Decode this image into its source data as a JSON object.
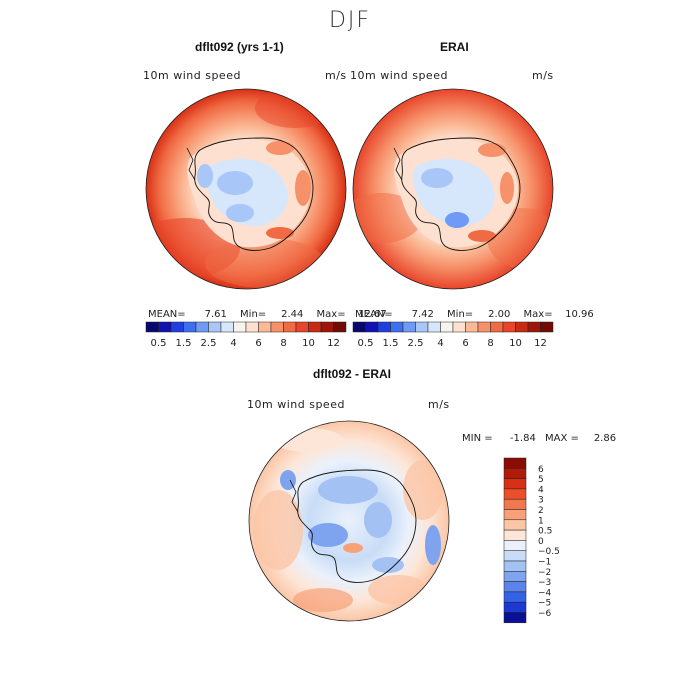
{
  "figure": {
    "title": "DJF"
  },
  "panels": [
    {
      "title": "dflt092 (yrs 1-1)",
      "left_label": "10m wind speed",
      "right_label": "m/s",
      "stats": {
        "mean": "7.61",
        "min": "2.44",
        "max": "12.67"
      },
      "stat_labels": {
        "mean": "MEAN=",
        "min": "Min=",
        "max": "Max="
      }
    },
    {
      "title": "ERAI",
      "left_label": "10m wind speed",
      "right_label": "m/s",
      "stats": {
        "mean": "7.42",
        "min": "2.00",
        "max": "10.96"
      },
      "stat_labels": {
        "mean": "MEAN=",
        "min": "Min=",
        "max": "Max="
      }
    },
    {
      "title": "dflt092 - ERAI",
      "left_label": "10m wind speed",
      "right_label": "m/s",
      "stats_text": {
        "min_label": "MIN =",
        "min": "-1.84",
        "max_label": "MAX =",
        "max": "2.86"
      }
    }
  ],
  "colorbar_horizontal": {
    "tick_labels": [
      "0.5",
      "1.5",
      "2.5",
      "4",
      "6",
      "8",
      "10",
      "12"
    ],
    "colors": [
      "#08086e",
      "#1212b0",
      "#1f3fe0",
      "#3d6ff0",
      "#6f9af5",
      "#a8c6f7",
      "#d6e6fb",
      "#f7f3ee",
      "#fde0cf",
      "#fbb996",
      "#f6916a",
      "#f06a43",
      "#e8452a",
      "#c82a14",
      "#9d1608",
      "#700a02"
    ]
  },
  "colorbar_vertical": {
    "tick_labels": [
      "6",
      "5",
      "4",
      "3",
      "2",
      "1",
      "0.5",
      "0",
      "−0.5",
      "−1",
      "−2",
      "−3",
      "−4",
      "−5",
      "−6"
    ],
    "colors": [
      "#8a0d02",
      "#b01c08",
      "#d83014",
      "#ea4f2a",
      "#f2764e",
      "#f7a178",
      "#fbc6a6",
      "#fde6d8",
      "#eaf1fb",
      "#c8dcf7",
      "#a3c1f3",
      "#7ea4ef",
      "#5a84ea",
      "#3462e4",
      "#1c3ad2",
      "#0a0f98"
    ]
  },
  "chart_data": [
    {
      "type": "heatmap",
      "title": "dflt092 (yrs 1-1)",
      "variable": "10m wind speed",
      "units": "m/s",
      "projection": "south polar stereographic",
      "mean": 7.61,
      "min": 2.44,
      "max": 12.67,
      "contour_levels": [
        0.5,
        1,
        1.5,
        2,
        2.5,
        3,
        4,
        5,
        6,
        7,
        8,
        9,
        10,
        11,
        12
      ]
    },
    {
      "type": "heatmap",
      "title": "ERAI",
      "variable": "10m wind speed",
      "units": "m/s",
      "projection": "south polar stereographic",
      "mean": 7.42,
      "min": 2.0,
      "max": 10.96,
      "contour_levels": [
        0.5,
        1,
        1.5,
        2,
        2.5,
        3,
        4,
        5,
        6,
        7,
        8,
        9,
        10,
        11,
        12
      ]
    },
    {
      "type": "heatmap",
      "title": "dflt092 - ERAI",
      "variable": "10m wind speed",
      "units": "m/s",
      "projection": "south polar stereographic",
      "min": -1.84,
      "max": 2.86,
      "contour_levels": [
        -6,
        -5,
        -4,
        -3,
        -2,
        -1,
        -0.5,
        0,
        0.5,
        1,
        2,
        3,
        4,
        5,
        6
      ]
    }
  ]
}
